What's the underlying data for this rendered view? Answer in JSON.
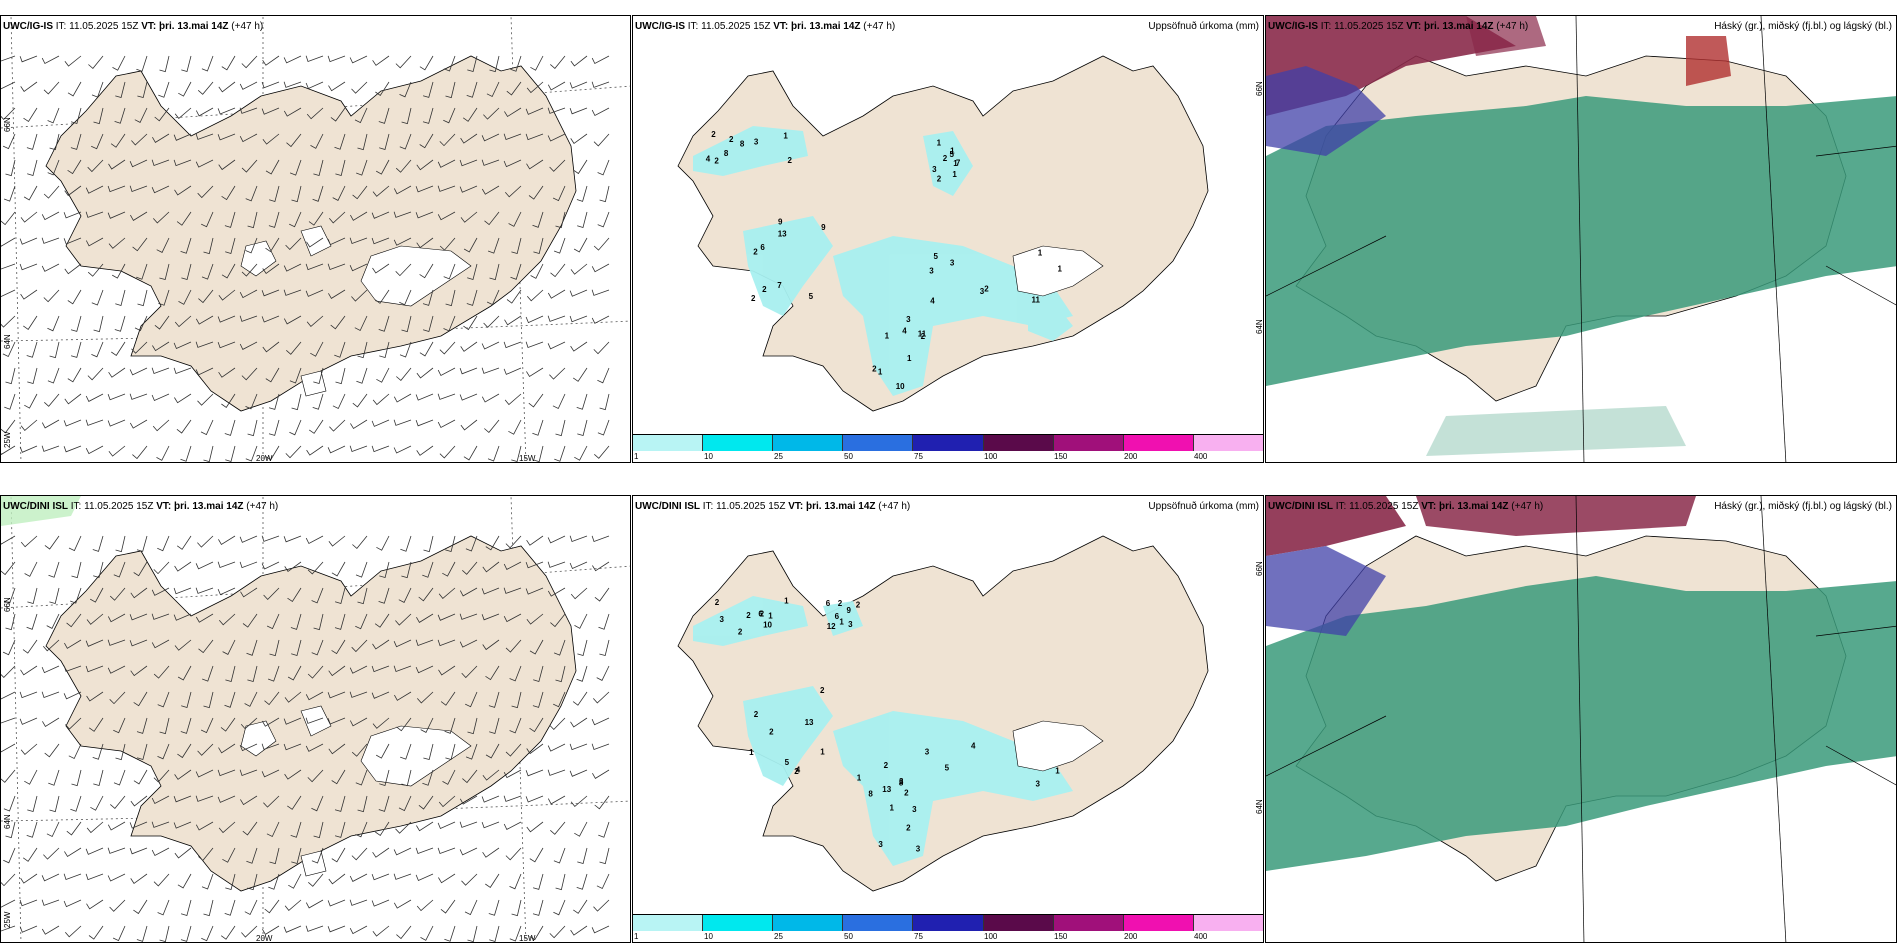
{
  "rows": [
    {
      "model": "UWC/IG-IS",
      "it_label": "IT:",
      "it_value": "11.05.2025 15Z",
      "vt_label": "VT:",
      "vt_value": "þri. 13.mai 14Z",
      "lead": "(+47 h)"
    },
    {
      "model": "UWC/DINI ISL",
      "it_label": "IT:",
      "it_value": "11.05.2025 15Z",
      "vt_label": "VT:",
      "vt_value": "þri. 13.mai 14Z",
      "lead": "(+47 h)"
    }
  ],
  "precip_title": "Uppsöfnuð úrkoma (mm)",
  "cloud_title": "Háský (gr.), miðský (fj.bl.) og lágský (bl.)",
  "grid_labels": {
    "lat66": "66N",
    "lat64": "64N",
    "lon25": "25W",
    "lon20": "20W",
    "lon15": "15W"
  },
  "colorbar": {
    "ticks": [
      "1",
      "10",
      "25",
      "50",
      "75",
      "100",
      "150",
      "200",
      "400"
    ],
    "colors": [
      "#b8f4f4",
      "#00e8ee",
      "#00b8e8",
      "#2a6fe0",
      "#2020b0",
      "#5a0a4a",
      "#a0107a",
      "#f010b0",
      "#f8b0f0"
    ]
  },
  "land_colors": {
    "land": "#efe3d3",
    "precip": "#a8f0f0",
    "cloud_low": "#3a9a7a",
    "cloud_high": "#8a2a4a",
    "cloud_mid": "#4040a8"
  },
  "precip_labels_top": [
    "2",
    "2",
    "1",
    "2",
    "4",
    "2",
    "13",
    "3",
    "3",
    "1",
    "4",
    "2",
    "5",
    "1",
    "1",
    "2",
    "9",
    "1",
    "1",
    "11",
    "8",
    "7",
    "3",
    "1",
    "3",
    "8",
    "5",
    "11",
    "7",
    "10",
    "2",
    "6",
    "3",
    "2",
    "2",
    "3",
    "2",
    "4",
    "5",
    "2",
    "1",
    "9",
    "2",
    "1",
    "1"
  ],
  "precip_labels_bottom": [
    "2",
    "2",
    "3",
    "3",
    "13",
    "2",
    "2",
    "3",
    "2",
    "1",
    "1",
    "5",
    "3",
    "1",
    "2",
    "6",
    "2",
    "8",
    "6",
    "8",
    "10",
    "2",
    "4",
    "12",
    "3",
    "3",
    "1",
    "2",
    "6",
    "2",
    "2",
    "4",
    "5",
    "2",
    "3",
    "1",
    "1",
    "1",
    "9",
    "3",
    "2",
    "13",
    "1"
  ]
}
